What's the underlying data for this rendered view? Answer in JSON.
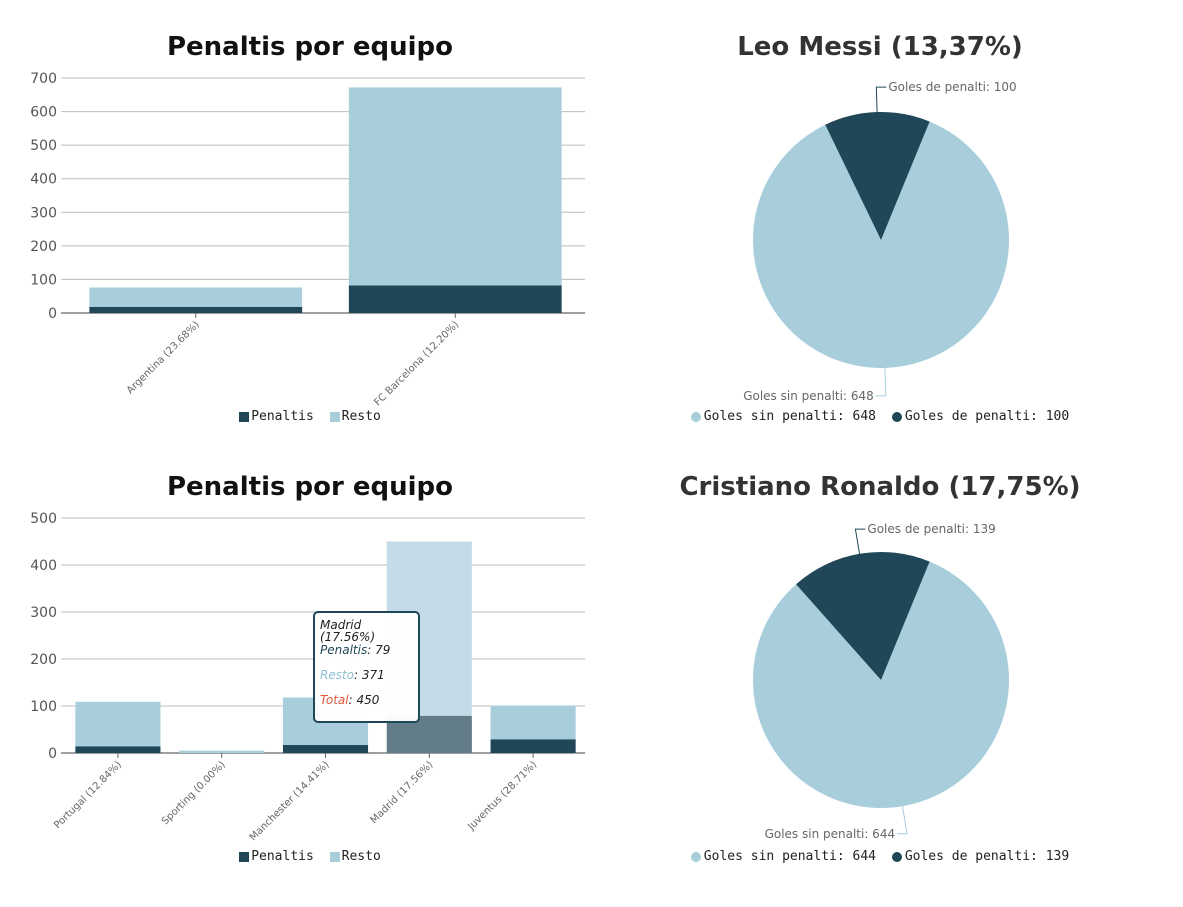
{
  "colors": {
    "penaltis": "#1f4757",
    "resto": "#a8cedc",
    "total": "#e05a3a",
    "axis": "#555555",
    "grid": "#bdbdbd"
  },
  "chart_data": [
    {
      "type": "bar",
      "stacked": true,
      "title": "Penaltis por equipo",
      "categories": [
        "Argentina (23.68%)",
        "FC Barcelona (12.20%)"
      ],
      "series": [
        {
          "name": "Penaltis",
          "values": [
            18,
            82
          ]
        },
        {
          "name": "Resto",
          "values": [
            58,
            590
          ]
        }
      ],
      "ylim": [
        0,
        700
      ],
      "yticks": [
        0,
        100,
        200,
        300,
        400,
        500,
        600,
        700
      ],
      "grid": true,
      "legend_position": "bottom"
    },
    {
      "type": "pie",
      "title": "Leo Messi (13,37%)",
      "slices": [
        {
          "label": "Goles sin penalti",
          "value": 648
        },
        {
          "label": "Goles de penalti",
          "value": 100
        }
      ],
      "data_labels": [
        "Goles sin penalti: 648",
        "Goles de penalti: 100"
      ],
      "legend": [
        "Goles sin penalti: 648",
        "Goles de penalti: 100"
      ],
      "legend_position": "bottom"
    },
    {
      "type": "bar",
      "stacked": true,
      "title": "Penaltis por equipo",
      "categories": [
        "Portugal (12.84%)",
        "Sporting (0.00%)",
        "Manchester (14.41%)",
        "Madrid (17.56%)",
        "Juventus (28.71%)"
      ],
      "series": [
        {
          "name": "Penaltis",
          "values": [
            14,
            0,
            17,
            79,
            29
          ]
        },
        {
          "name": "Resto",
          "values": [
            95,
            5,
            101,
            371,
            72
          ]
        }
      ],
      "ylim": [
        0,
        500
      ],
      "yticks": [
        0,
        100,
        200,
        300,
        400,
        500
      ],
      "grid": true,
      "legend_position": "bottom",
      "highlighted_index": 3,
      "tooltip": {
        "header": "Madrid (17.56%)",
        "rows": [
          {
            "label": "Penaltis",
            "value": "79"
          },
          {
            "label": "Resto",
            "value": "371"
          },
          {
            "label": "Total",
            "value": "450"
          }
        ]
      }
    },
    {
      "type": "pie",
      "title": "Cristiano Ronaldo (17,75%)",
      "slices": [
        {
          "label": "Goles sin penalti",
          "value": 644
        },
        {
          "label": "Goles de penalti",
          "value": 139
        }
      ],
      "data_labels": [
        "Goles sin penalti: 644",
        "Goles de penalti: 139"
      ],
      "legend": [
        "Goles sin penalti: 644",
        "Goles de penalti: 139"
      ],
      "legend_position": "bottom"
    }
  ]
}
